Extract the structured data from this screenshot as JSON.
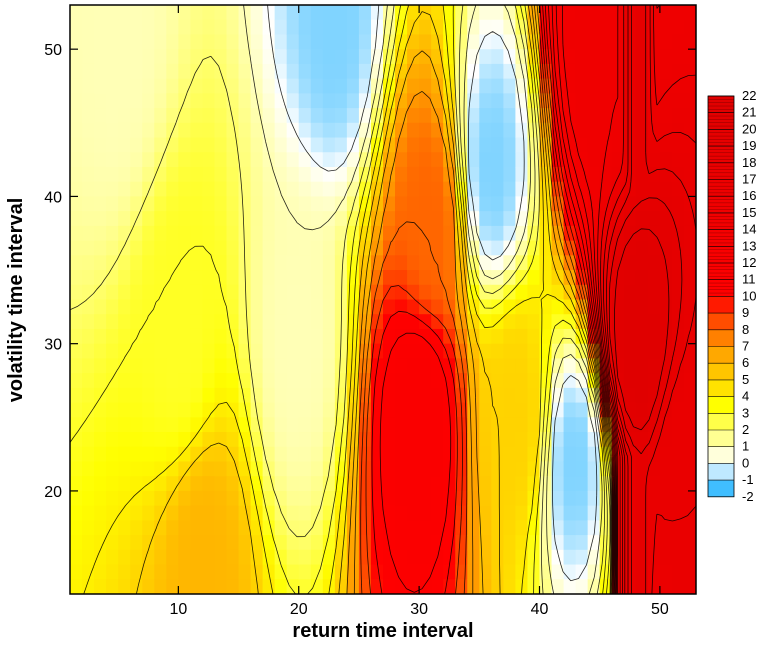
{
  "chart_data": {
    "type": "heatmap",
    "title": "",
    "xlabel": "return time interval",
    "ylabel": "volatility time interval",
    "xlim": [
      1,
      53
    ],
    "ylim": [
      13,
      53
    ],
    "xticks": [
      10,
      20,
      30,
      40,
      50
    ],
    "yticks": [
      20,
      30,
      40,
      50
    ],
    "colorbar": {
      "min": -2,
      "max": 22,
      "levels": [
        22,
        21,
        20,
        19,
        18,
        17,
        16,
        15,
        14,
        13,
        12,
        11,
        10,
        9,
        8,
        7,
        6,
        5,
        4,
        3,
        2,
        1,
        0,
        -1,
        -2
      ],
      "colors": {
        "low": "#00a8ff",
        "zero": "#ffffff",
        "mid": "#ffff00",
        "orange": "#ff9900",
        "high": "#ff0000",
        "top": "#e00000"
      }
    },
    "grid": false,
    "legend_position": "right",
    "z_description_sample_points": [
      {
        "x": 5,
        "y": 50,
        "z": 1
      },
      {
        "x": 10,
        "y": 30,
        "z": 3
      },
      {
        "x": 12,
        "y": 15,
        "z": 6
      },
      {
        "x": 20,
        "y": 30,
        "z": 1
      },
      {
        "x": 23,
        "y": 52,
        "z": -1
      },
      {
        "x": 30,
        "y": 25,
        "z": 12
      },
      {
        "x": 31,
        "y": 38,
        "z": 8
      },
      {
        "x": 36,
        "y": 42,
        "z": -1
      },
      {
        "x": 38,
        "y": 25,
        "z": 5
      },
      {
        "x": 43,
        "y": 22,
        "z": -1
      },
      {
        "x": 45,
        "y": 50,
        "z": 16
      },
      {
        "x": 48,
        "y": 30,
        "z": 22
      },
      {
        "x": 52,
        "y": 20,
        "z": 18
      }
    ]
  }
}
